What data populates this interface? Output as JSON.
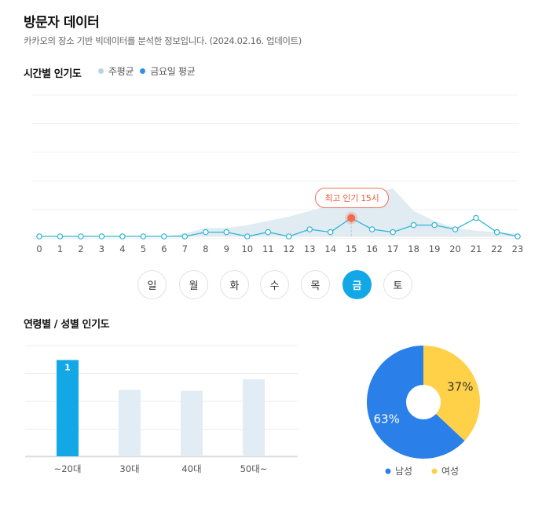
{
  "header": {
    "title": "방문자 데이터",
    "description": "카카오의 장소 기반 빅데이터를 분석한 정보입니다. (2024.02.16. 업데이트)"
  },
  "hourly": {
    "title": "시간별 인기도",
    "legend": [
      {
        "label": "주평균",
        "color": "#b4d6e3"
      },
      {
        "label": "금요일 평균",
        "color": "#2e8ff0"
      }
    ],
    "peak_label": "최고 인기 15시",
    "peak_hour": 15
  },
  "days": {
    "items": [
      "일",
      "월",
      "화",
      "수",
      "목",
      "금",
      "토"
    ],
    "selected": "금"
  },
  "demographics": {
    "title": "연령별 / 성별 인기도"
  },
  "chart_data": [
    {
      "type": "line",
      "x": [
        0,
        1,
        2,
        3,
        4,
        5,
        6,
        7,
        8,
        9,
        10,
        11,
        12,
        13,
        14,
        15,
        16,
        17,
        18,
        19,
        20,
        21,
        22,
        23
      ],
      "xlabel": "",
      "ylabel": "",
      "ylim": [
        0,
        10
      ],
      "series": [
        {
          "name": "주평균",
          "type": "area",
          "color": "#dce9f0",
          "values": [
            0,
            0,
            0,
            0,
            0,
            0,
            0,
            0.2,
            0.6,
            0.6,
            0.8,
            1.1,
            1.4,
            1.8,
            2.2,
            2.6,
            3.0,
            3.4,
            1.8,
            1.1,
            0.6,
            0.4,
            0.3,
            0.2
          ]
        },
        {
          "name": "금요일 평균",
          "type": "line",
          "color": "#2fb4d4",
          "values": [
            0,
            0,
            0,
            0,
            0,
            0,
            0,
            0,
            0.3,
            0.3,
            0,
            0.3,
            0,
            0.5,
            0.3,
            1.3,
            0.5,
            0.3,
            0.8,
            0.8,
            0.5,
            1.3,
            0.3,
            0
          ]
        }
      ],
      "highlight": {
        "x": 15,
        "label": "최고 인기 15시"
      },
      "grid": true
    },
    {
      "type": "bar",
      "categories": [
        "~20대",
        "30대",
        "40대",
        "50대~"
      ],
      "values": [
        1,
        0.69,
        0.68,
        0.8
      ],
      "data_labels": [
        "1",
        "",
        "",
        ""
      ],
      "highlight_index": 0,
      "colors": {
        "highlight": "#12a8e6",
        "normal": "#e2ecf4"
      },
      "ylim": [
        0,
        1.15
      ],
      "grid": true
    },
    {
      "type": "pie",
      "labels": [
        "남성",
        "여성"
      ],
      "values": [
        63,
        37
      ],
      "value_labels": [
        "63%",
        "37%"
      ],
      "colors": [
        "#2b7fe8",
        "#ffd149"
      ]
    }
  ]
}
